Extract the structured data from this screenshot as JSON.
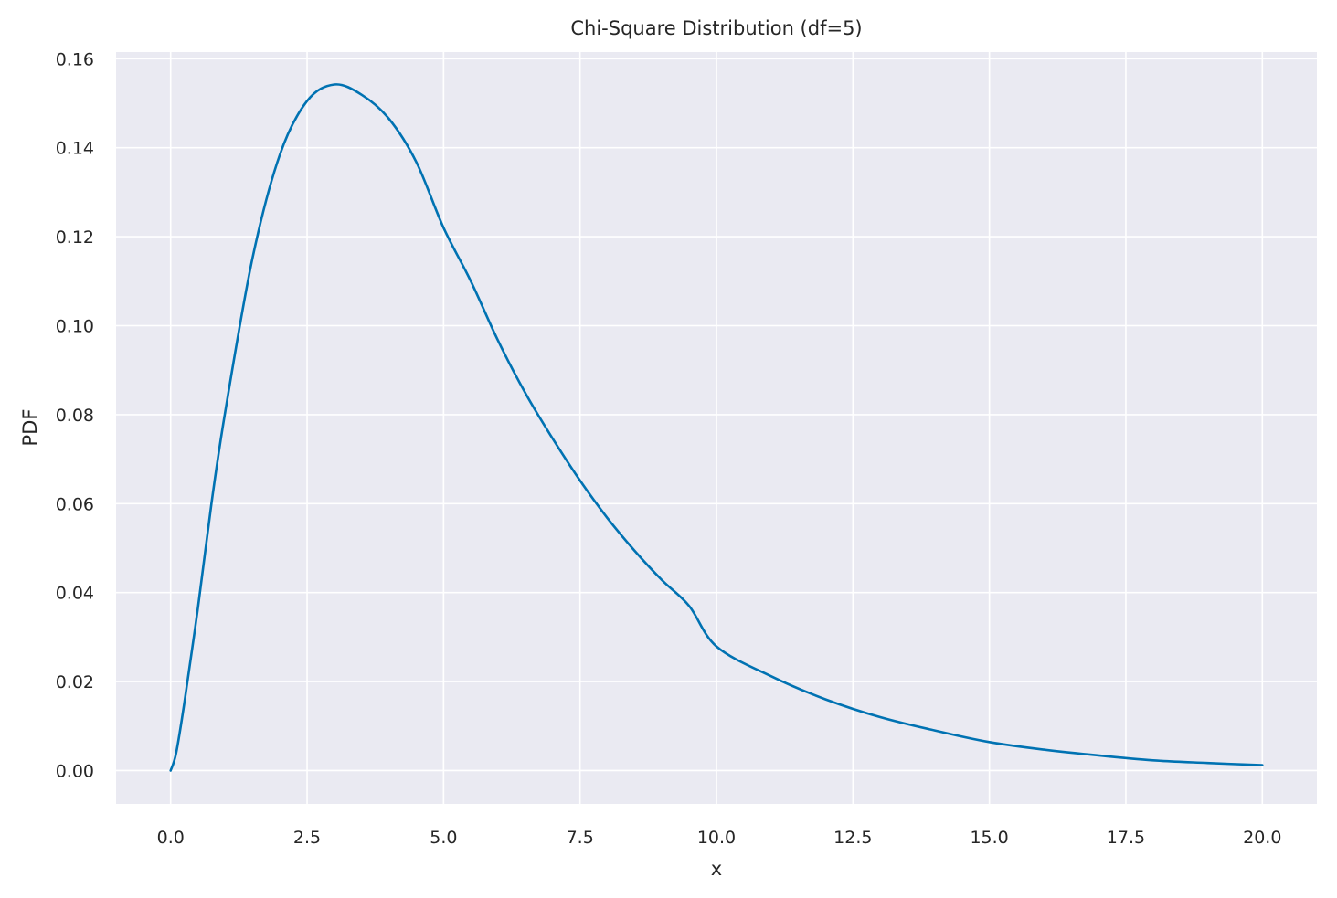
{
  "chart_data": {
    "type": "line",
    "title": "Chi-Square Distribution (df=5)",
    "xlabel": "x",
    "ylabel": "PDF",
    "xlim": [
      -1.0,
      21.0
    ],
    "ylim": [
      -0.0075,
      0.1615
    ],
    "xticks": [
      0.0,
      2.5,
      5.0,
      7.5,
      10.0,
      12.5,
      15.0,
      17.5,
      20.0
    ],
    "xtick_labels": [
      "0.0",
      "2.5",
      "5.0",
      "7.5",
      "10.0",
      "12.5",
      "15.0",
      "17.5",
      "20.0"
    ],
    "yticks": [
      0.0,
      0.02,
      0.04,
      0.06,
      0.08,
      0.1,
      0.12,
      0.14,
      0.16
    ],
    "ytick_labels": [
      "0.00",
      "0.02",
      "0.04",
      "0.06",
      "0.08",
      "0.10",
      "0.12",
      "0.14",
      "0.16"
    ],
    "grid": true,
    "background_color": "#eaeaf2",
    "grid_color": "#ffffff",
    "series": [
      {
        "color": "#0072b2",
        "x": [
          0,
          0.1,
          0.25,
          0.5,
          0.75,
          1.0,
          1.5,
          2.0,
          2.5,
          3.0,
          3.5,
          4.0,
          4.5,
          5.0,
          5.5,
          6.0,
          6.5,
          7.0,
          7.5,
          8.0,
          8.5,
          9.0,
          9.5,
          10.0,
          11.0,
          12.0,
          13.0,
          14.0,
          15.0,
          16.0,
          17.0,
          18.0,
          19.0,
          20.0
        ],
        "y": [
          0.0,
          0.0039,
          0.0152,
          0.0366,
          0.0602,
          0.0807,
          0.1152,
          0.1384,
          0.1505,
          0.1542,
          0.1519,
          0.1465,
          0.1368,
          0.122,
          0.11,
          0.0966,
          0.0848,
          0.0746,
          0.0652,
          0.0568,
          0.0494,
          0.0428,
          0.037,
          0.0279,
          0.0212,
          0.016,
          0.012,
          0.009,
          0.0064,
          0.0047,
          0.0034,
          0.0023,
          0.0017,
          0.0012
        ]
      }
    ]
  }
}
